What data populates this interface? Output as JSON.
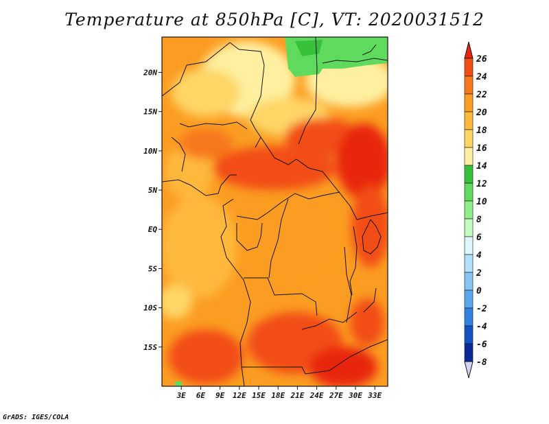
{
  "title": "Temperature at 850hPa [C], VT: 2020031512",
  "credit": "GrADS: IGES/COLA",
  "map": {
    "lon_range": [
      0,
      35
    ],
    "lat_range": [
      -20,
      24.5
    ],
    "lon_ticks": [
      {
        "value": 3,
        "label": "3E"
      },
      {
        "value": 6,
        "label": "6E"
      },
      {
        "value": 9,
        "label": "9E"
      },
      {
        "value": 12,
        "label": "12E"
      },
      {
        "value": 15,
        "label": "15E"
      },
      {
        "value": 18,
        "label": "18E"
      },
      {
        "value": 21,
        "label": "21E"
      },
      {
        "value": 24,
        "label": "24E"
      },
      {
        "value": 27,
        "label": "27E"
      },
      {
        "value": 30,
        "label": "30E"
      },
      {
        "value": 33,
        "label": "33E"
      }
    ],
    "lat_ticks": [
      {
        "value": 20,
        "label": "20N"
      },
      {
        "value": 15,
        "label": "15N"
      },
      {
        "value": 10,
        "label": "10N"
      },
      {
        "value": 5,
        "label": "5N"
      },
      {
        "value": 0,
        "label": "EQ"
      },
      {
        "value": -5,
        "label": "5S"
      },
      {
        "value": -10,
        "label": "10S"
      },
      {
        "value": -15,
        "label": "15S"
      }
    ]
  },
  "colorbar": {
    "levels": [
      26,
      24,
      22,
      20,
      18,
      16,
      14,
      12,
      10,
      8,
      6,
      4,
      2,
      0,
      -2,
      -4,
      -6,
      -8
    ],
    "labels": [
      "26",
      "24",
      "22",
      "20",
      "18",
      "16",
      "14",
      "12",
      "10",
      "8",
      "6",
      "4",
      "2",
      "0",
      "-2",
      "-4",
      "-6",
      "-8"
    ],
    "colors": [
      "#e8260f",
      "#f24d14",
      "#f7771c",
      "#fb9d22",
      "#feb93d",
      "#fed666",
      "#fef0a0",
      "#35c23a",
      "#60da5c",
      "#8fee88",
      "#c2fac0",
      "#dff5fd",
      "#b3e0fb",
      "#86c5f6",
      "#5aa6ef",
      "#3182e0",
      "#1354c3",
      "#0a2b96",
      "#07156b",
      "#d4d4f7"
    ]
  }
}
